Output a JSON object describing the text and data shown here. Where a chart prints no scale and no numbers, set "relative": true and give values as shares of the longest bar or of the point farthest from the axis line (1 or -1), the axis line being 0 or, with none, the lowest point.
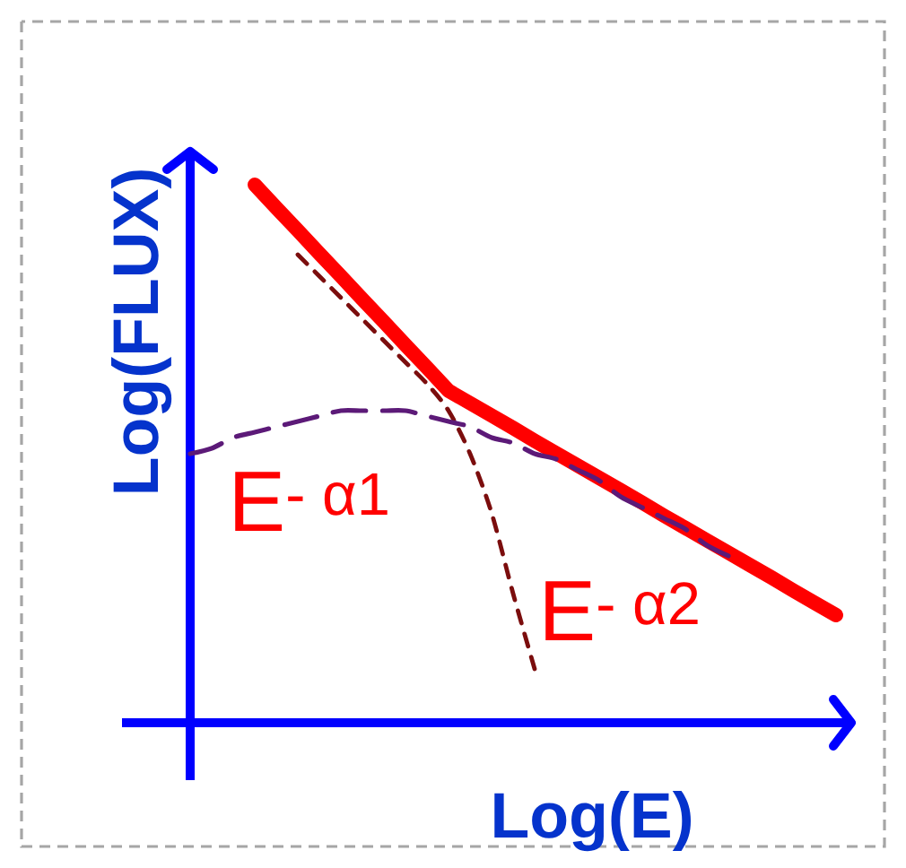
{
  "chart_data": {
    "type": "line",
    "relative": true,
    "xlabel": "Log(E)",
    "ylabel": "Log(FLUX)",
    "annotations": [
      "E$^{- α1}$",
      "E$^{- α2}$"
    ],
    "categories": [
      null,
      null,
      null,
      null,
      null,
      null,
      null,
      null,
      null,
      null,
      null,
      null,
      null,
      null,
      null,
      null,
      null,
      null,
      null,
      null,
      null,
      null,
      null,
      null,
      null,
      null,
      null,
      null,
      null,
      null,
      null
    ],
    "series": [
      {
        "color": "#ff0000",
        "line_style": "solid",
        "values": [
          null,
          null,
          null,
          1.0,
          0.957,
          0.915,
          0.872,
          0.83,
          0.787,
          0.745,
          0.702,
          0.66,
          0.617,
          0.594,
          0.571,
          0.548,
          0.524,
          0.501,
          0.478,
          0.455,
          0.432,
          0.409,
          0.385,
          0.362,
          0.339,
          0.316,
          0.293,
          0.27,
          0.246,
          0.223,
          0.2
        ]
      },
      {
        "color": "#7b0d0d",
        "line_style": "dashed",
        "values": [
          null,
          null,
          null,
          null,
          null,
          0.87,
          0.83,
          0.79,
          0.75,
          0.71,
          0.67,
          0.63,
          0.58,
          0.5,
          0.39,
          0.24,
          0.1,
          null,
          null,
          null,
          null,
          null,
          null,
          null,
          null,
          null,
          null,
          null,
          null,
          null,
          null
        ]
      },
      {
        "color": "#5c1a78",
        "line_style": "dashed",
        "values": [
          0.5,
          0.51,
          0.53,
          0.54,
          0.55,
          0.56,
          0.57,
          0.58,
          0.58,
          0.58,
          0.58,
          0.57,
          0.56,
          0.55,
          0.53,
          0.52,
          0.5,
          0.49,
          0.47,
          0.45,
          0.42,
          0.4,
          0.38,
          0.36,
          0.33,
          0.31,
          null,
          null,
          null,
          null,
          null
        ]
      }
    ]
  }
}
